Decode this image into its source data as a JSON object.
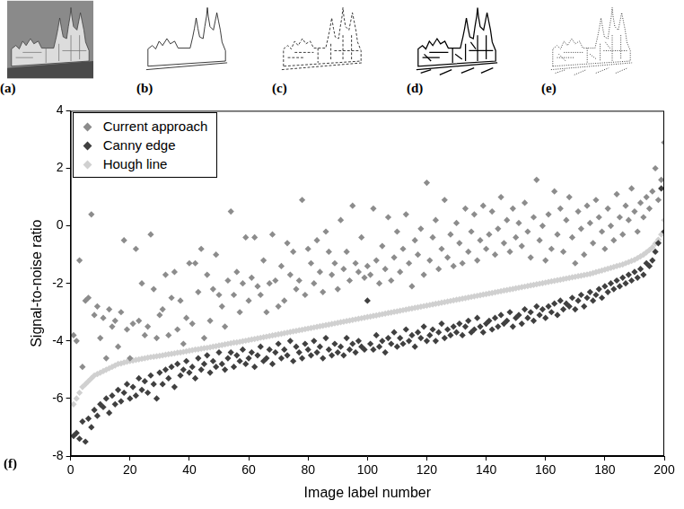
{
  "image_panels": [
    "(a)",
    "(b)",
    "(c)",
    "(d)",
    "(e)"
  ],
  "chart_data": {
    "type": "scatter",
    "panel_label": "(f)",
    "x_label": "Image label number",
    "y_label": "Signal-to-noise ratio",
    "xlim": [
      0,
      200
    ],
    "xticks": [
      0,
      20,
      40,
      60,
      80,
      100,
      120,
      140,
      160,
      180,
      200
    ],
    "ylim": [
      -8,
      4
    ],
    "yticks": [
      -8,
      -6,
      -4,
      -2,
      0,
      2,
      4
    ],
    "grid": false,
    "legend": "upper left",
    "marker": "diamond",
    "x": [
      1,
      2,
      3,
      4,
      5,
      6,
      7,
      8,
      9,
      10,
      11,
      12,
      13,
      14,
      15,
      16,
      17,
      18,
      19,
      20,
      21,
      22,
      23,
      24,
      25,
      26,
      27,
      28,
      29,
      30,
      31,
      32,
      33,
      34,
      35,
      36,
      37,
      38,
      39,
      40,
      41,
      42,
      43,
      44,
      45,
      46,
      47,
      48,
      49,
      50,
      51,
      52,
      53,
      54,
      55,
      56,
      57,
      58,
      59,
      60,
      61,
      62,
      63,
      64,
      65,
      66,
      67,
      68,
      69,
      70,
      71,
      72,
      73,
      74,
      75,
      76,
      77,
      78,
      79,
      80,
      81,
      82,
      83,
      84,
      85,
      86,
      87,
      88,
      89,
      90,
      91,
      92,
      93,
      94,
      95,
      96,
      97,
      98,
      99,
      100,
      101,
      102,
      103,
      104,
      105,
      106,
      107,
      108,
      109,
      110,
      111,
      112,
      113,
      114,
      115,
      116,
      117,
      118,
      119,
      120,
      121,
      122,
      123,
      124,
      125,
      126,
      127,
      128,
      129,
      130,
      131,
      132,
      133,
      134,
      135,
      136,
      137,
      138,
      139,
      140,
      141,
      142,
      143,
      144,
      145,
      146,
      147,
      148,
      149,
      150,
      151,
      152,
      153,
      154,
      155,
      156,
      157,
      158,
      159,
      160,
      161,
      162,
      163,
      164,
      165,
      166,
      167,
      168,
      169,
      170,
      171,
      172,
      173,
      174,
      175,
      176,
      177,
      178,
      179,
      180,
      181,
      182,
      183,
      184,
      185,
      186,
      187,
      188,
      189,
      190,
      191,
      192,
      193,
      194,
      195,
      196,
      197,
      198,
      199,
      200
    ],
    "series": [
      {
        "name": "Current approach",
        "color": "#8c8c8c",
        "values": [
          -3.8,
          -4.0,
          -1.2,
          -4.9,
          -2.6,
          -2.5,
          0.4,
          -3.1,
          -2.8,
          -3.9,
          -3.2,
          -4.6,
          -2.9,
          -3.5,
          -3.3,
          -4.2,
          -3.0,
          -0.5,
          -3.6,
          -4.6,
          -3.4,
          -0.8,
          -3.3,
          -2.0,
          -3.8,
          -3.5,
          -0.3,
          -2.2,
          -3.9,
          -3.1,
          -2.9,
          -1.7,
          -3.8,
          -2.5,
          -1.6,
          -3.6,
          -2.6,
          -4.1,
          -3.2,
          -1.3,
          -3.4,
          -1.3,
          -2.3,
          -0.8,
          -3.9,
          -1.7,
          -3.3,
          -2.2,
          -1.0,
          -2.4,
          -2.8,
          -3.5,
          -1.9,
          0.5,
          -2.4,
          -1.6,
          -3.0,
          -2.0,
          -0.4,
          -2.6,
          -1.8,
          -0.4,
          -2.1,
          -2.4,
          -1.2,
          -3.0,
          -2.0,
          -0.3,
          -1.9,
          -2.8,
          -1.4,
          -2.6,
          -0.6,
          -1.7,
          -0.9,
          -2.2,
          -1.9,
          0.9,
          -2.4,
          -0.8,
          -1.3,
          -2.0,
          -0.5,
          -1.6,
          -2.3,
          -0.2,
          -0.9,
          -1.7,
          -1.3,
          -2.2,
          0.2,
          -1.5,
          -0.9,
          -1.9,
          0.7,
          -1.3,
          -1.6,
          -0.4,
          -1.8,
          -1.4,
          -1.7,
          0.6,
          -1.2,
          -2.0,
          -0.7,
          -1.5,
          0.3,
          -1.9,
          -1.1,
          -0.2,
          -1.6,
          -0.8,
          0.4,
          -1.3,
          -2.1,
          -0.5,
          -1.0,
          -0.1,
          -1.7,
          1.5,
          -1.2,
          -0.4,
          0.2,
          -1.5,
          -0.8,
          0.9,
          -1.1,
          -0.3,
          -1.4,
          0.1,
          -0.6,
          -1.3,
          0.6,
          -0.9,
          -0.2,
          0.4,
          -1.2,
          -0.5,
          0.7,
          -0.8,
          -0.3,
          0.5,
          -1.0,
          -0.1,
          1.0,
          -0.6,
          0.2,
          -0.9,
          0.6,
          -0.4,
          0.1,
          -0.7,
          0.8,
          -0.2,
          -1.1,
          0.3,
          1.6,
          -0.5,
          0.0,
          -1.2,
          0.4,
          -0.8,
          1.2,
          -0.3,
          0.6,
          -0.9,
          0.2,
          1.0,
          -0.4,
          -1.3,
          0.5,
          -0.1,
          -1.0,
          0.7,
          0.1,
          -0.6,
          0.9,
          0.3,
          -0.2,
          -0.8,
          0.6,
          0.0,
          -0.5,
          1.1,
          0.3,
          -0.3,
          0.7,
          0.2,
          1.3,
          0.5,
          -0.2,
          0.8,
          0.3,
          1.0,
          0.6,
          1.2,
          2.0,
          0.9,
          1.6,
          2.9
        ]
      },
      {
        "name": "Canny edge",
        "color": "#404040",
        "values": [
          -7.3,
          -7.2,
          -7.4,
          -6.8,
          -7.5,
          -6.7,
          -7.0,
          -6.4,
          -6.6,
          -6.2,
          -6.3,
          -6.0,
          -6.5,
          -5.9,
          -6.2,
          -5.7,
          -6.1,
          -5.8,
          -5.5,
          -6.0,
          -5.6,
          -5.9,
          -5.3,
          -5.7,
          -5.4,
          -5.8,
          -5.2,
          -5.5,
          -6.0,
          -5.1,
          -5.5,
          -5.0,
          -5.3,
          -4.9,
          -5.6,
          -4.8,
          -5.2,
          -5.0,
          -4.7,
          -5.1,
          -4.9,
          -5.3,
          -4.6,
          -5.0,
          -4.8,
          -4.5,
          -5.1,
          -4.7,
          -4.9,
          -4.4,
          -4.8,
          -5.0,
          -4.6,
          -4.4,
          -4.9,
          -4.5,
          -4.7,
          -4.3,
          -4.8,
          -4.6,
          -4.4,
          -4.9,
          -4.5,
          -4.2,
          -4.7,
          -4.6,
          -4.3,
          -4.8,
          -4.4,
          -4.1,
          -4.6,
          -4.3,
          -4.5,
          -4.0,
          -4.7,
          -4.2,
          -4.4,
          -4.6,
          -4.1,
          -4.3,
          -4.5,
          -4.0,
          -4.4,
          -4.2,
          -4.6,
          -3.9,
          -4.3,
          -4.5,
          -4.1,
          -4.4,
          -4.2,
          -4.5,
          -3.9,
          -4.3,
          -4.1,
          -4.4,
          -4.0,
          -4.2,
          -4.3,
          -2.6,
          -4.1,
          -4.3,
          -3.8,
          -4.2,
          -4.0,
          -4.4,
          -3.9,
          -4.1,
          -3.7,
          -4.2,
          -3.9,
          -4.1,
          -3.6,
          -4.0,
          -3.8,
          -4.2,
          -3.7,
          -3.9,
          -3.5,
          -4.0,
          -3.8,
          -3.6,
          -4.0,
          -3.7,
          -3.4,
          -3.9,
          -3.6,
          -3.8,
          -3.5,
          -3.7,
          -3.4,
          -3.8,
          -3.5,
          -3.3,
          -3.7,
          -3.6,
          -3.2,
          -3.5,
          -3.7,
          -3.4,
          -3.3,
          -3.6,
          -3.2,
          -3.5,
          -3.1,
          -3.4,
          -3.3,
          -3.0,
          -3.5,
          -3.2,
          -3.1,
          -3.4,
          -2.9,
          -3.2,
          -3.0,
          -3.3,
          -2.8,
          -3.1,
          -2.9,
          -3.2,
          -2.8,
          -3.0,
          -2.7,
          -3.1,
          -2.6,
          -2.9,
          -2.7,
          -2.8,
          -2.5,
          -2.9,
          -2.6,
          -2.4,
          -2.8,
          -2.5,
          -2.3,
          -2.6,
          -2.4,
          -2.2,
          -2.5,
          -2.1,
          -2.3,
          -2.0,
          -2.2,
          -1.9,
          -2.1,
          -1.8,
          -2.0,
          -1.7,
          -1.9,
          -1.6,
          -1.8,
          -1.5,
          -1.7,
          -1.3,
          -1.4,
          -1.2,
          -0.9,
          -0.6,
          1.3,
          -0.2
        ]
      },
      {
        "name": "Hough line",
        "color": "#d0d0d0",
        "values": [
          -6.2,
          -6.0,
          -5.8,
          -5.6,
          -5.5,
          -5.4,
          -5.3,
          -5.2,
          -5.15,
          -5.1,
          -5.05,
          -5.0,
          -4.95,
          -4.9,
          -4.85,
          -4.8,
          -4.78,
          -4.75,
          -4.72,
          -4.7,
          -4.68,
          -4.66,
          -4.64,
          -4.62,
          -4.6,
          -4.58,
          -4.56,
          -4.55,
          -4.53,
          -4.52,
          -4.5,
          -4.48,
          -4.46,
          -4.45,
          -4.43,
          -4.41,
          -4.4,
          -4.38,
          -4.36,
          -4.34,
          -4.32,
          -4.3,
          -4.29,
          -4.27,
          -4.25,
          -4.24,
          -4.22,
          -4.2,
          -4.18,
          -4.16,
          -4.14,
          -4.12,
          -4.1,
          -4.08,
          -4.06,
          -4.05,
          -4.03,
          -4.01,
          -3.99,
          -3.97,
          -3.95,
          -3.93,
          -3.91,
          -3.89,
          -3.87,
          -3.85,
          -3.83,
          -3.81,
          -3.79,
          -3.77,
          -3.75,
          -3.73,
          -3.71,
          -3.69,
          -3.67,
          -3.65,
          -3.63,
          -3.61,
          -3.59,
          -3.57,
          -3.55,
          -3.53,
          -3.51,
          -3.49,
          -3.47,
          -3.45,
          -3.43,
          -3.41,
          -3.39,
          -3.37,
          -3.35,
          -3.33,
          -3.31,
          -3.29,
          -3.27,
          -3.25,
          -3.23,
          -3.21,
          -3.19,
          -3.17,
          -3.15,
          -3.13,
          -3.11,
          -3.09,
          -3.07,
          -3.05,
          -3.03,
          -3.01,
          -2.99,
          -2.97,
          -2.95,
          -2.93,
          -2.91,
          -2.89,
          -2.87,
          -2.85,
          -2.83,
          -2.81,
          -2.79,
          -2.77,
          -2.75,
          -2.73,
          -2.71,
          -2.69,
          -2.67,
          -2.65,
          -2.63,
          -2.61,
          -2.59,
          -2.57,
          -2.55,
          -2.53,
          -2.51,
          -2.49,
          -2.47,
          -2.45,
          -2.43,
          -2.41,
          -2.39,
          -2.37,
          -2.35,
          -2.33,
          -2.31,
          -2.29,
          -2.27,
          -2.25,
          -2.23,
          -2.21,
          -2.19,
          -2.17,
          -2.15,
          -2.13,
          -2.11,
          -2.09,
          -2.07,
          -2.05,
          -2.03,
          -2.01,
          -1.99,
          -1.97,
          -1.95,
          -1.93,
          -1.91,
          -1.89,
          -1.87,
          -1.85,
          -1.83,
          -1.81,
          -1.79,
          -1.77,
          -1.75,
          -1.73,
          -1.71,
          -1.69,
          -1.67,
          -1.64,
          -1.61,
          -1.58,
          -1.55,
          -1.52,
          -1.49,
          -1.46,
          -1.43,
          -1.4,
          -1.37,
          -1.34,
          -1.3,
          -1.26,
          -1.22,
          -1.18,
          -1.12,
          -1.06,
          -1.0,
          -0.92,
          -0.84,
          -0.75,
          -0.62,
          -0.48,
          -0.3,
          0.2
        ]
      }
    ]
  }
}
